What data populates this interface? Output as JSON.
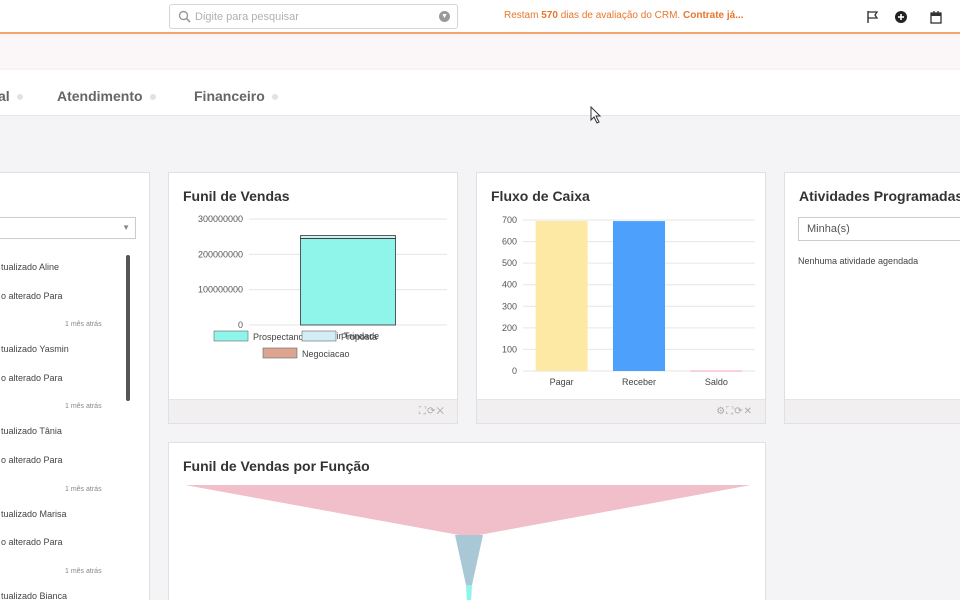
{
  "topbar": {
    "search_placeholder": "Digite para pesquisar",
    "trial_prefix": "Restam ",
    "trial_days": "570",
    "trial_suffix": " dias de avaliação do CRM. ",
    "trial_cta": "Contrate já...",
    "accent": "#e8772a",
    "icons": [
      "flag-icon",
      "plus-circle-icon",
      "calendar-icon"
    ]
  },
  "tabs": [
    {
      "label": "al"
    },
    {
      "label": "Atendimento"
    },
    {
      "label": "Financeiro"
    }
  ],
  "feed": {
    "items": [
      {
        "line1": "tualizado Aline",
        "line2": "o  alterado Para",
        "time": "1 mês atrás"
      },
      {
        "line1": "tualizado Yasmin",
        "line2": "o  alterado Para",
        "time": "1 mês atrás"
      },
      {
        "line1": "tualizado Tânia",
        "line2": "o  alterado Para",
        "time": "1 mês atrás"
      },
      {
        "line1": "tualizado Marisa",
        "line2": "o  alterado Para",
        "time": "1 mês atrás"
      },
      {
        "line1": "tualizado Bianca",
        "line2": "",
        "time": ""
      }
    ]
  },
  "funil": {
    "title": "Funil de Vendas",
    "tools": "⛶⟳✕"
  },
  "fluxo": {
    "title": "Fluxo de Caixa",
    "tools": "⚙⛶⟳✕"
  },
  "atividades": {
    "title": "Atividades Programadas",
    "select_value": "Minha(s)",
    "empty": "Nenhuma atividade agendada"
  },
  "funcao": {
    "title": "Funil de Vendas por Função"
  },
  "chart_data": [
    {
      "type": "bar",
      "title": "Funil de Vendas",
      "categories": [
        "Valmir Trindade"
      ],
      "stacked": true,
      "ylim": [
        0,
        300000000
      ],
      "yticks": [
        "300000000",
        "200000000",
        "100000000",
        "0"
      ],
      "series": [
        {
          "name": "Prospectando",
          "values": [
            245000000
          ],
          "color": "#8ff5ea"
        },
        {
          "name": "Proposta",
          "values": [
            8000000
          ],
          "color": "#d2eef4"
        },
        {
          "name": "Negociacao",
          "values": [
            0
          ],
          "color": "#dba58f"
        }
      ],
      "grid": true,
      "legend": "bottom"
    },
    {
      "type": "bar",
      "title": "Fluxo de Caixa",
      "categories": [
        "Pagar",
        "Receber",
        "Saldo"
      ],
      "values": [
        695,
        695,
        2
      ],
      "colors": [
        "#fde9a4",
        "#4da0fb",
        "#f3a7b7"
      ],
      "ylim": [
        0,
        700
      ],
      "yticks": [
        "700",
        "600",
        "500",
        "400",
        "300",
        "200",
        "100",
        "0"
      ],
      "grid": true
    }
  ]
}
